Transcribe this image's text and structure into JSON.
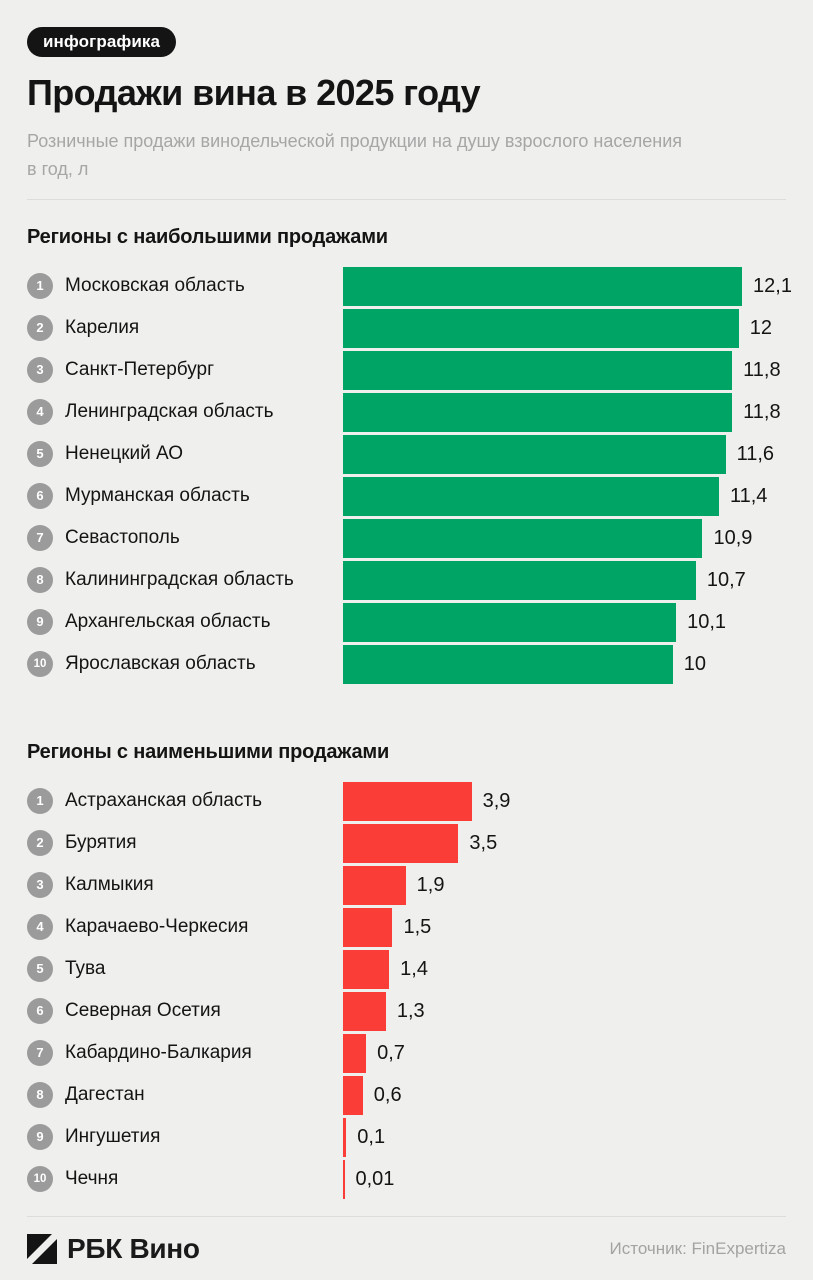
{
  "badge": "инфографика",
  "title": "Продажи вина в 2025 году",
  "subtitle_lines": [
    "Розничные продажи винодельческой продукции на душу взрослого населения",
    "в год, л"
  ],
  "colors": {
    "background": "#efefed",
    "positive_bar": "#00a566",
    "negative_bar": "#fb3d38",
    "rank_circle": "#9b9b9b",
    "badge_background": "#141414",
    "text_primary": "#141414",
    "text_muted": "#a6a6a6"
  },
  "chart_data": [
    {
      "type": "bar",
      "orientation": "horizontal",
      "title": "Регионы с наибольшими продажами",
      "unit": "л",
      "bar_color": "#00a566",
      "xlim": [
        0,
        12.1
      ],
      "ranks": [
        "1",
        "2",
        "3",
        "4",
        "5",
        "6",
        "7",
        "8",
        "9",
        "10"
      ],
      "categories": [
        "Московская область",
        "Карелия",
        "Санкт-Петербург",
        "Ленинградская область",
        "Ненецкий АО",
        "Мурманская область",
        "Севастополь",
        "Калининградская область",
        "Архангельская область",
        "Ярославская область"
      ],
      "values": [
        12.1,
        12,
        11.8,
        11.8,
        11.6,
        11.4,
        10.9,
        10.7,
        10.1,
        10
      ],
      "value_labels": [
        "12,1",
        "12",
        "11,8",
        "11,8",
        "11,6",
        "11,4",
        "10,9",
        "10,7",
        "10,1",
        "10"
      ]
    },
    {
      "type": "bar",
      "orientation": "horizontal",
      "title": "Регионы с наименьшими продажами",
      "unit": "л",
      "bar_color": "#fb3d38",
      "xlim": [
        0,
        12.1
      ],
      "ranks": [
        "1",
        "2",
        "3",
        "4",
        "5",
        "6",
        "7",
        "8",
        "9",
        "10"
      ],
      "categories": [
        "Астраханская область",
        "Бурятия",
        "Калмыкия",
        "Карачаево-Черкесия",
        "Тува",
        "Северная Осетия",
        "Кабардино-Балкария",
        "Дагестан",
        "Ингушетия",
        "Чечня"
      ],
      "values": [
        3.9,
        3.5,
        1.9,
        1.5,
        1.4,
        1.3,
        0.7,
        0.6,
        0.1,
        0.01
      ],
      "value_labels": [
        "3,9",
        "3,5",
        "1,9",
        "1,5",
        "1,4",
        "1,3",
        "0,7",
        "0,6",
        "0,1",
        "0,01"
      ]
    }
  ],
  "footer": {
    "brand": "РБК Вино",
    "source": "Источник: FinExpertiza"
  }
}
